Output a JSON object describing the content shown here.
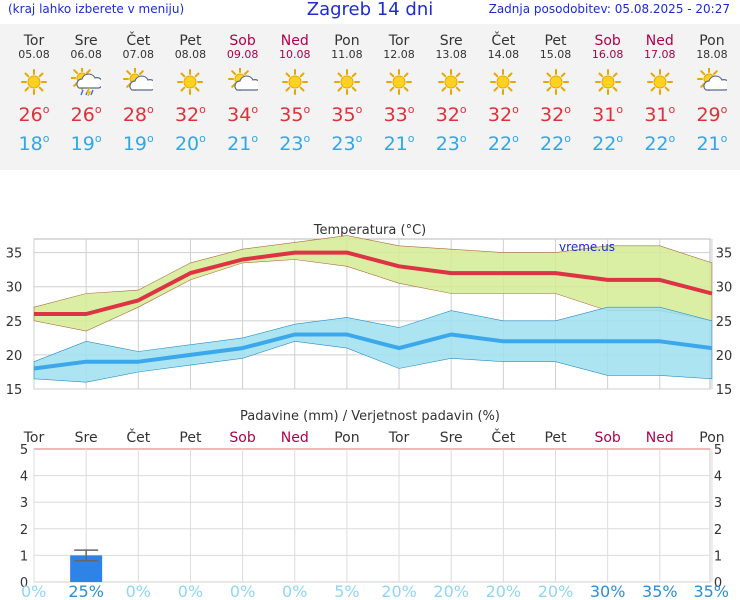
{
  "header": {
    "left_link": "(kraj lahko izberete v meniju)",
    "title": "Zagreb 14 dni",
    "updated": "Zadnja posodobitev: 05.08.2025 - 20:27"
  },
  "days": [
    {
      "name": "Tor",
      "date": "05.08",
      "weekend": false,
      "icon": "sun-icon",
      "max": "26",
      "min": "18"
    },
    {
      "name": "Sre",
      "date": "06.08",
      "weekend": false,
      "icon": "sun-cloud-rain-storm-icon",
      "max": "26",
      "min": "19"
    },
    {
      "name": "Čet",
      "date": "07.08",
      "weekend": false,
      "icon": "sun-cloud-icon",
      "max": "28",
      "min": "19"
    },
    {
      "name": "Pet",
      "date": "08.08",
      "weekend": false,
      "icon": "sun-icon",
      "max": "32",
      "min": "20"
    },
    {
      "name": "Sob",
      "date": "09.08",
      "weekend": true,
      "icon": "sun-cloud-icon",
      "max": "34",
      "min": "21"
    },
    {
      "name": "Ned",
      "date": "10.08",
      "weekend": true,
      "icon": "sun-icon",
      "max": "35",
      "min": "23"
    },
    {
      "name": "Pon",
      "date": "11.08",
      "weekend": false,
      "icon": "sun-icon",
      "max": "35",
      "min": "23"
    },
    {
      "name": "Tor",
      "date": "12.08",
      "weekend": false,
      "icon": "sun-icon",
      "max": "33",
      "min": "21"
    },
    {
      "name": "Sre",
      "date": "13.08",
      "weekend": false,
      "icon": "sun-icon",
      "max": "32",
      "min": "23"
    },
    {
      "name": "Čet",
      "date": "14.08",
      "weekend": false,
      "icon": "sun-icon",
      "max": "32",
      "min": "22"
    },
    {
      "name": "Pet",
      "date": "15.08",
      "weekend": false,
      "icon": "sun-icon",
      "max": "32",
      "min": "22"
    },
    {
      "name": "Sob",
      "date": "16.08",
      "weekend": true,
      "icon": "sun-icon",
      "max": "31",
      "min": "22"
    },
    {
      "name": "Ned",
      "date": "17.08",
      "weekend": true,
      "icon": "sun-icon",
      "max": "31",
      "min": "22"
    },
    {
      "name": "Pon",
      "date": "18.08",
      "weekend": false,
      "icon": "sun-cloud-icon",
      "max": "29",
      "min": "21"
    }
  ],
  "degree_symbol": "o",
  "colors": {
    "max_line": "#dd3344",
    "max_band": "#d3ec94",
    "min_line": "#3aa8ea",
    "min_band": "#9edff0",
    "weekend": "#b0004b",
    "precip_bar": "#2e84e6",
    "prob_text": "#8fd6f5"
  },
  "chart_data": [
    {
      "type": "line",
      "title": "Temperatura (°C)",
      "watermark": "vreme.us",
      "x": [
        "Tor",
        "Sre",
        "Čet",
        "Pet",
        "Sob",
        "Ned",
        "Pon",
        "Tor",
        "Sre",
        "Čet",
        "Pet",
        "Sob",
        "Ned",
        "Pon"
      ],
      "ylim": [
        15,
        37
      ],
      "yticks": [
        15,
        20,
        25,
        30,
        35
      ],
      "series": [
        {
          "role": "max",
          "values": [
            26,
            26,
            28,
            32,
            34,
            35,
            35,
            33,
            32,
            32,
            32,
            31,
            31,
            29
          ],
          "band_low": [
            25,
            23.5,
            27,
            31,
            33.5,
            34,
            33,
            30.5,
            29,
            29,
            29,
            26.5,
            26.5,
            25
          ],
          "band_high": [
            27,
            29,
            29.5,
            33.5,
            35.5,
            36.5,
            37.5,
            36,
            35.5,
            35,
            35,
            36,
            36,
            33.5
          ]
        },
        {
          "role": "min",
          "values": [
            18,
            19,
            19,
            20,
            21,
            23,
            23,
            21,
            23,
            22,
            22,
            22,
            22,
            21
          ],
          "band_low": [
            16.5,
            16,
            17.5,
            18.5,
            19.5,
            22,
            21,
            18,
            19.5,
            19,
            19,
            17,
            17,
            16.5
          ],
          "band_high": [
            19,
            22,
            20.5,
            21.5,
            22.5,
            24.5,
            25.5,
            24,
            26.5,
            25,
            25,
            27,
            27,
            25
          ]
        }
      ]
    },
    {
      "type": "bar",
      "title": "Padavine (mm) / Verjetnost padavin (%)",
      "categories": [
        "Tor",
        "Sre",
        "Čet",
        "Pet",
        "Sob",
        "Ned",
        "Pon",
        "Tor",
        "Sre",
        "Čet",
        "Pet",
        "Sob",
        "Ned",
        "Pon"
      ],
      "values": [
        0,
        1,
        0,
        0,
        0,
        0,
        0,
        0,
        0,
        0,
        0,
        0,
        0,
        0
      ],
      "error_high": [
        0,
        1.2,
        0,
        0,
        0,
        0,
        0,
        0,
        0,
        0,
        0,
        0,
        0,
        0
      ],
      "error_low": [
        0,
        0.8,
        0,
        0,
        0,
        0,
        0,
        0,
        0,
        0,
        0,
        0,
        0,
        0
      ],
      "ylim": [
        0,
        5
      ],
      "yticks": [
        0,
        1,
        2,
        3,
        4,
        5
      ],
      "probability": [
        "0%",
        "25%",
        "0%",
        "0%",
        "0%",
        "0%",
        "5%",
        "20%",
        "20%",
        "20%",
        "20%",
        "30%",
        "35%",
        "35%"
      ]
    }
  ]
}
